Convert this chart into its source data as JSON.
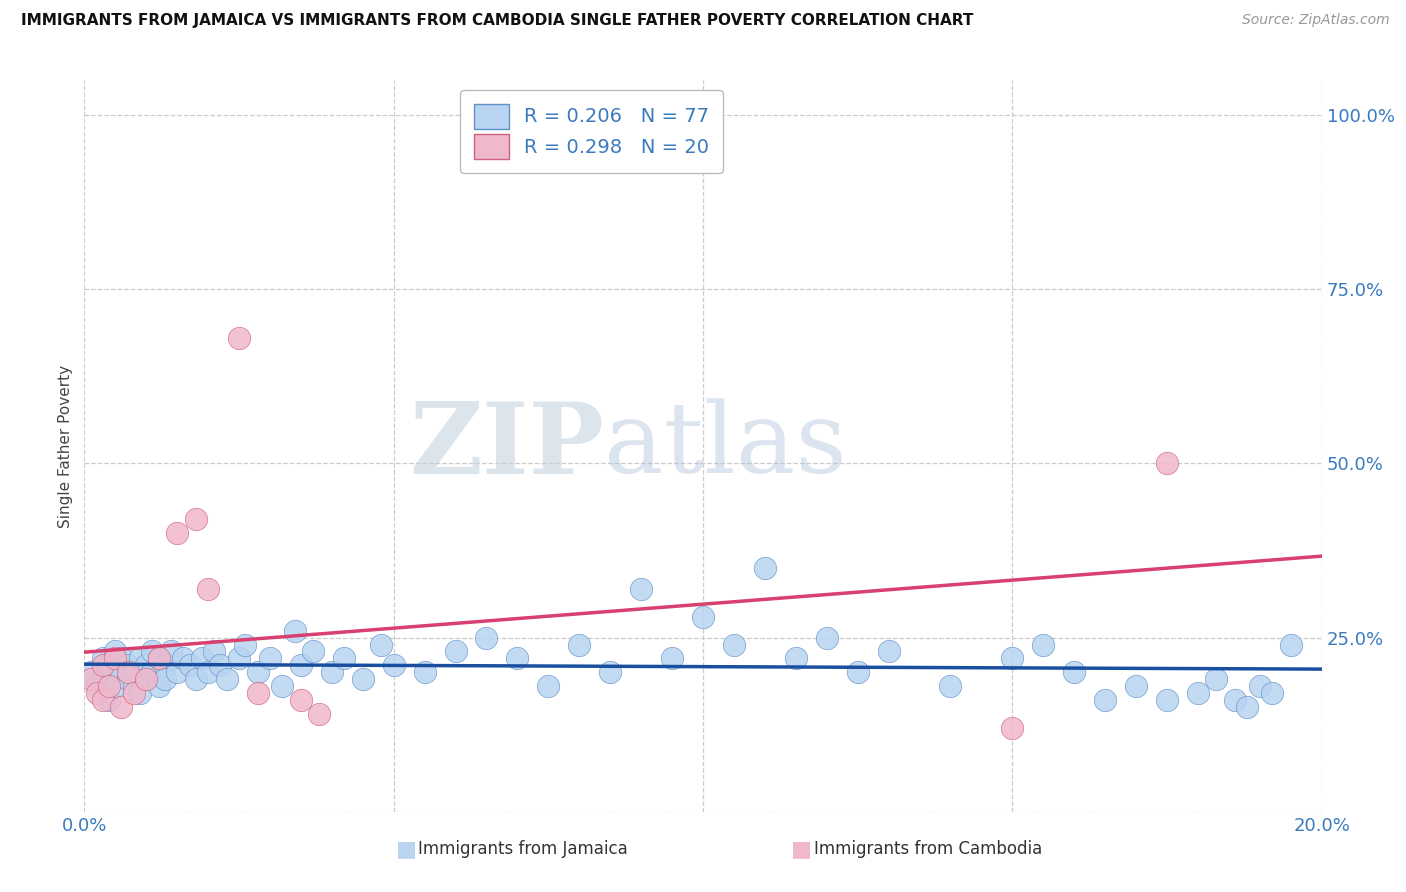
{
  "title": "IMMIGRANTS FROM JAMAICA VS IMMIGRANTS FROM CAMBODIA SINGLE FATHER POVERTY CORRELATION CHART",
  "source": "Source: ZipAtlas.com",
  "xlabel_jamaica": "Immigrants from Jamaica",
  "xlabel_cambodia": "Immigrants from Cambodia",
  "ylabel": "Single Father Poverty",
  "xlim": [
    0.0,
    0.2
  ],
  "ylim": [
    0.0,
    1.05
  ],
  "xticks": [
    0.0,
    0.05,
    0.1,
    0.15,
    0.2
  ],
  "yticks": [
    0.0,
    0.25,
    0.5,
    0.75,
    1.0
  ],
  "xtick_labels": [
    "0.0%",
    "",
    "",
    "",
    "20.0%"
  ],
  "ytick_labels": [
    "",
    "25.0%",
    "50.0%",
    "75.0%",
    "100.0%"
  ],
  "jamaica_color": "#b8d4f0",
  "jamaica_edge_color": "#6090c8",
  "cambodia_color": "#f0b8cc",
  "cambodia_edge_color": "#d06080",
  "jamaica_line_color": "#1a4fa0",
  "cambodia_line_color": "#d84070",
  "jamaica_R": 0.206,
  "jamaica_N": 77,
  "cambodia_R": 0.298,
  "cambodia_N": 20,
  "legend_jamaica_label": "R = 0.206   N = 77",
  "legend_cambodia_label": "R = 0.298   N = 20",
  "background_color": "#ffffff",
  "grid_color": "#cccccc",
  "tick_color": "#3a7abf",
  "jamaica_x": [
    0.001,
    0.002,
    0.003,
    0.003,
    0.004,
    0.004,
    0.005,
    0.005,
    0.006,
    0.006,
    0.007,
    0.007,
    0.008,
    0.008,
    0.009,
    0.009,
    0.01,
    0.01,
    0.011,
    0.011,
    0.012,
    0.012,
    0.013,
    0.013,
    0.014,
    0.015,
    0.016,
    0.017,
    0.018,
    0.019,
    0.02,
    0.021,
    0.022,
    0.023,
    0.025,
    0.026,
    0.028,
    0.03,
    0.032,
    0.034,
    0.035,
    0.037,
    0.04,
    0.042,
    0.045,
    0.048,
    0.05,
    0.055,
    0.06,
    0.065,
    0.07,
    0.075,
    0.08,
    0.085,
    0.09,
    0.095,
    0.1,
    0.105,
    0.11,
    0.115,
    0.12,
    0.125,
    0.13,
    0.14,
    0.15,
    0.155,
    0.16,
    0.165,
    0.17,
    0.175,
    0.18,
    0.183,
    0.186,
    0.188,
    0.19,
    0.192,
    0.195
  ],
  "jamaica_y": [
    0.2,
    0.18,
    0.22,
    0.19,
    0.21,
    0.16,
    0.23,
    0.18,
    0.2,
    0.22,
    0.19,
    0.21,
    0.18,
    0.2,
    0.22,
    0.17,
    0.21,
    0.19,
    0.23,
    0.2,
    0.22,
    0.18,
    0.21,
    0.19,
    0.23,
    0.2,
    0.22,
    0.21,
    0.19,
    0.22,
    0.2,
    0.23,
    0.21,
    0.19,
    0.22,
    0.24,
    0.2,
    0.22,
    0.18,
    0.26,
    0.21,
    0.23,
    0.2,
    0.22,
    0.19,
    0.24,
    0.21,
    0.2,
    0.23,
    0.25,
    0.22,
    0.18,
    0.24,
    0.2,
    0.32,
    0.22,
    0.28,
    0.24,
    0.35,
    0.22,
    0.25,
    0.2,
    0.23,
    0.18,
    0.22,
    0.24,
    0.2,
    0.16,
    0.18,
    0.16,
    0.17,
    0.19,
    0.16,
    0.15,
    0.18,
    0.17,
    0.24
  ],
  "cambodia_x": [
    0.001,
    0.002,
    0.003,
    0.003,
    0.004,
    0.005,
    0.006,
    0.007,
    0.008,
    0.01,
    0.012,
    0.015,
    0.018,
    0.02,
    0.025,
    0.028,
    0.035,
    0.038,
    0.15,
    0.175
  ],
  "cambodia_y": [
    0.19,
    0.17,
    0.21,
    0.16,
    0.18,
    0.22,
    0.15,
    0.2,
    0.17,
    0.19,
    0.22,
    0.4,
    0.42,
    0.32,
    0.68,
    0.17,
    0.16,
    0.14,
    0.12,
    0.5
  ]
}
